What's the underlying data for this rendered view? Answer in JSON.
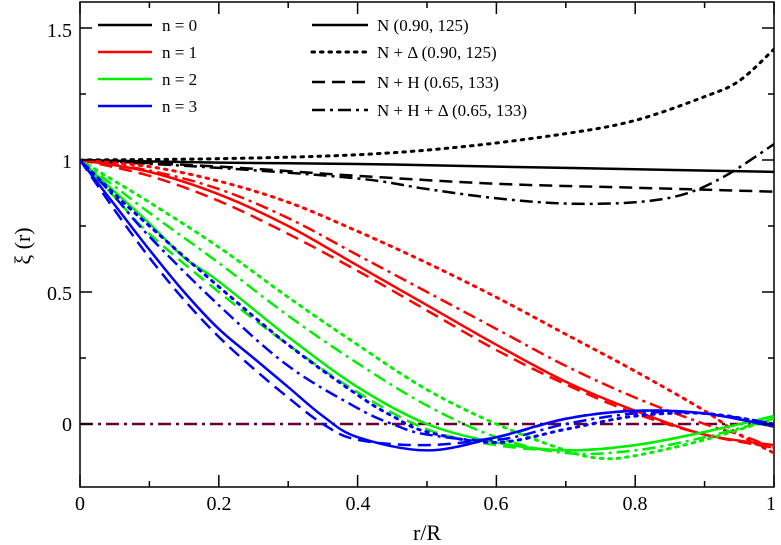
{
  "chart_data": {
    "type": "line",
    "title": "",
    "xlabel": "r/R",
    "ylabel": "ξ (r)",
    "xlim": [
      0,
      1
    ],
    "ylim": [
      -0.25,
      1.6
    ],
    "xticks": [
      "0",
      "0.2",
      "0.4",
      "0.6",
      "0.8",
      "1"
    ],
    "yticks": [
      "0",
      "0.5",
      "1",
      "1.5"
    ],
    "legend_colors": [
      {
        "label": "n = 0",
        "color": "#000000"
      },
      {
        "label": "n = 1",
        "color": "#ff0000"
      },
      {
        "label": "n = 2",
        "color": "#00ee00"
      },
      {
        "label": "n = 3",
        "color": "#0000ff"
      }
    ],
    "legend_styles": [
      {
        "label": "N (0.90, 125)",
        "dash": "solid"
      },
      {
        "label": "N + Δ (0.90, 125)",
        "dash": "dot"
      },
      {
        "label": "N + H (0.65, 133)",
        "dash": "dash"
      },
      {
        "label": "N + H + Δ (0.65, 133)",
        "dash": "dashdot"
      }
    ],
    "reference_line": {
      "y": 0,
      "color": "#660033",
      "dash": "dashdot"
    },
    "series": [
      {
        "name": "n = 0, N",
        "color": "#000000",
        "dash": "solid",
        "points": [
          [
            0,
            1
          ],
          [
            0.2,
            0.99
          ],
          [
            0.4,
            0.985
          ],
          [
            0.6,
            0.975
          ],
          [
            0.8,
            0.965
          ],
          [
            1.0,
            0.955
          ]
        ]
      },
      {
        "name": "n = 0, N + Δ",
        "color": "#000000",
        "dash": "dot",
        "points": [
          [
            0,
            1
          ],
          [
            0.2,
            1.005
          ],
          [
            0.4,
            1.02
          ],
          [
            0.55,
            1.05
          ],
          [
            0.7,
            1.1
          ],
          [
            0.8,
            1.15
          ],
          [
            0.9,
            1.24
          ],
          [
            0.95,
            1.3
          ],
          [
            1.0,
            1.42
          ]
        ]
      },
      {
        "name": "n = 0, N + H",
        "color": "#000000",
        "dash": "dash",
        "points": [
          [
            0,
            1
          ],
          [
            0.2,
            0.975
          ],
          [
            0.4,
            0.94
          ],
          [
            0.6,
            0.91
          ],
          [
            0.8,
            0.895
          ],
          [
            1.0,
            0.88
          ]
        ]
      },
      {
        "name": "n = 0, N + H + Δ",
        "color": "#000000",
        "dash": "dashdot",
        "points": [
          [
            0,
            1
          ],
          [
            0.2,
            0.97
          ],
          [
            0.4,
            0.93
          ],
          [
            0.5,
            0.89
          ],
          [
            0.6,
            0.855
          ],
          [
            0.7,
            0.835
          ],
          [
            0.8,
            0.84
          ],
          [
            0.87,
            0.87
          ],
          [
            0.93,
            0.94
          ],
          [
            1.0,
            1.06
          ]
        ]
      },
      {
        "name": "n = 1, N",
        "color": "#ff0000",
        "dash": "solid",
        "points": [
          [
            0,
            1
          ],
          [
            0.1,
            0.955
          ],
          [
            0.2,
            0.87
          ],
          [
            0.3,
            0.75
          ],
          [
            0.4,
            0.6
          ],
          [
            0.5,
            0.45
          ],
          [
            0.6,
            0.3
          ],
          [
            0.7,
            0.16
          ],
          [
            0.8,
            0.05
          ],
          [
            0.9,
            -0.04
          ],
          [
            1.0,
            -0.08
          ]
        ]
      },
      {
        "name": "n = 1, N + Δ",
        "color": "#ff0000",
        "dash": "dot",
        "points": [
          [
            0,
            1
          ],
          [
            0.1,
            0.975
          ],
          [
            0.2,
            0.92
          ],
          [
            0.3,
            0.84
          ],
          [
            0.4,
            0.73
          ],
          [
            0.5,
            0.61
          ],
          [
            0.6,
            0.48
          ],
          [
            0.7,
            0.34
          ],
          [
            0.8,
            0.2
          ],
          [
            0.9,
            0.05
          ],
          [
            0.95,
            -0.04
          ],
          [
            1.0,
            -0.11
          ]
        ]
      },
      {
        "name": "n = 1, N + H",
        "color": "#ff0000",
        "dash": "dash",
        "points": [
          [
            0,
            1
          ],
          [
            0.1,
            0.94
          ],
          [
            0.2,
            0.845
          ],
          [
            0.3,
            0.72
          ],
          [
            0.4,
            0.58
          ],
          [
            0.5,
            0.43
          ],
          [
            0.6,
            0.28
          ],
          [
            0.7,
            0.15
          ],
          [
            0.8,
            0.04
          ],
          [
            0.9,
            -0.04
          ],
          [
            1.0,
            -0.09
          ]
        ]
      },
      {
        "name": "n = 1, N + H + Δ",
        "color": "#ff0000",
        "dash": "dashdot",
        "points": [
          [
            0,
            1
          ],
          [
            0.1,
            0.96
          ],
          [
            0.2,
            0.89
          ],
          [
            0.3,
            0.78
          ],
          [
            0.4,
            0.64
          ],
          [
            0.5,
            0.5
          ],
          [
            0.6,
            0.36
          ],
          [
            0.7,
            0.22
          ],
          [
            0.8,
            0.1
          ],
          [
            0.9,
            0.0
          ],
          [
            0.95,
            -0.04
          ],
          [
            1.0,
            -0.09
          ]
        ]
      },
      {
        "name": "n = 2, N",
        "color": "#00ee00",
        "dash": "solid",
        "points": [
          [
            0,
            1
          ],
          [
            0.05,
            0.88
          ],
          [
            0.1,
            0.76
          ],
          [
            0.15,
            0.63
          ],
          [
            0.2,
            0.54
          ],
          [
            0.3,
            0.33
          ],
          [
            0.4,
            0.14
          ],
          [
            0.5,
            0.0
          ],
          [
            0.6,
            -0.07
          ],
          [
            0.7,
            -0.1
          ],
          [
            0.8,
            -0.08
          ],
          [
            0.9,
            -0.03
          ],
          [
            1.0,
            0.03
          ]
        ]
      },
      {
        "name": "n = 2, N + Δ",
        "color": "#00ee00",
        "dash": "dot",
        "points": [
          [
            0,
            1
          ],
          [
            0.05,
            0.92
          ],
          [
            0.1,
            0.84
          ],
          [
            0.2,
            0.67
          ],
          [
            0.3,
            0.48
          ],
          [
            0.4,
            0.3
          ],
          [
            0.5,
            0.13
          ],
          [
            0.6,
            0.0
          ],
          [
            0.7,
            -0.1
          ],
          [
            0.75,
            -0.13
          ],
          [
            0.8,
            -0.12
          ],
          [
            0.9,
            -0.06
          ],
          [
            1.0,
            0.02
          ]
        ]
      },
      {
        "name": "n = 2, N + H",
        "color": "#00ee00",
        "dash": "dash",
        "points": [
          [
            0,
            1
          ],
          [
            0.05,
            0.86
          ],
          [
            0.1,
            0.72
          ],
          [
            0.2,
            0.5
          ],
          [
            0.3,
            0.3
          ],
          [
            0.4,
            0.12
          ],
          [
            0.5,
            -0.02
          ],
          [
            0.6,
            -0.08
          ],
          [
            0.7,
            -0.1
          ],
          [
            0.8,
            -0.08
          ],
          [
            0.9,
            -0.03
          ],
          [
            1.0,
            0.03
          ]
        ]
      },
      {
        "name": "n = 2, N + H + Δ",
        "color": "#00ee00",
        "dash": "dashdot",
        "points": [
          [
            0,
            1
          ],
          [
            0.05,
            0.9
          ],
          [
            0.1,
            0.8
          ],
          [
            0.2,
            0.61
          ],
          [
            0.3,
            0.41
          ],
          [
            0.4,
            0.23
          ],
          [
            0.5,
            0.07
          ],
          [
            0.6,
            -0.05
          ],
          [
            0.7,
            -0.11
          ],
          [
            0.8,
            -0.1
          ],
          [
            0.9,
            -0.05
          ],
          [
            1.0,
            0.02
          ]
        ]
      },
      {
        "name": "n = 3, N",
        "color": "#0000ff",
        "dash": "solid",
        "points": [
          [
            0,
            1
          ],
          [
            0.05,
            0.83
          ],
          [
            0.1,
            0.66
          ],
          [
            0.15,
            0.5
          ],
          [
            0.2,
            0.36
          ],
          [
            0.25,
            0.25
          ],
          [
            0.3,
            0.14
          ],
          [
            0.35,
            0.03
          ],
          [
            0.4,
            -0.05
          ],
          [
            0.5,
            -0.1
          ],
          [
            0.6,
            -0.05
          ],
          [
            0.7,
            0.02
          ],
          [
            0.8,
            0.05
          ],
          [
            0.9,
            0.04
          ],
          [
            1.0,
            -0.01
          ]
        ]
      },
      {
        "name": "n = 3, N + Δ",
        "color": "#0000ff",
        "dash": "dot",
        "points": [
          [
            0,
            1
          ],
          [
            0.05,
            0.87
          ],
          [
            0.1,
            0.75
          ],
          [
            0.2,
            0.52
          ],
          [
            0.3,
            0.3
          ],
          [
            0.4,
            0.11
          ],
          [
            0.45,
            0.03
          ],
          [
            0.5,
            -0.03
          ],
          [
            0.6,
            -0.07
          ],
          [
            0.7,
            -0.02
          ],
          [
            0.8,
            0.03
          ],
          [
            0.9,
            0.04
          ],
          [
            1.0,
            0.0
          ]
        ]
      },
      {
        "name": "n = 3, N + H",
        "color": "#0000ff",
        "dash": "dash",
        "points": [
          [
            0,
            1
          ],
          [
            0.05,
            0.81
          ],
          [
            0.1,
            0.63
          ],
          [
            0.15,
            0.47
          ],
          [
            0.2,
            0.33
          ],
          [
            0.25,
            0.21
          ],
          [
            0.3,
            0.1
          ],
          [
            0.35,
            0.0
          ],
          [
            0.4,
            -0.06
          ],
          [
            0.5,
            -0.08
          ],
          [
            0.6,
            -0.05
          ],
          [
            0.7,
            0.02
          ],
          [
            0.8,
            0.05
          ],
          [
            0.9,
            0.04
          ],
          [
            1.0,
            -0.01
          ]
        ]
      },
      {
        "name": "n = 3, N + H + Δ",
        "color": "#0000ff",
        "dash": "dashdot",
        "points": [
          [
            0,
            1
          ],
          [
            0.05,
            0.86
          ],
          [
            0.1,
            0.71
          ],
          [
            0.2,
            0.45
          ],
          [
            0.3,
            0.22
          ],
          [
            0.4,
            0.06
          ],
          [
            0.45,
            0.0
          ],
          [
            0.5,
            -0.04
          ],
          [
            0.6,
            -0.06
          ],
          [
            0.7,
            0.0
          ],
          [
            0.8,
            0.04
          ],
          [
            0.9,
            0.04
          ],
          [
            1.0,
            0.0
          ]
        ]
      }
    ]
  }
}
